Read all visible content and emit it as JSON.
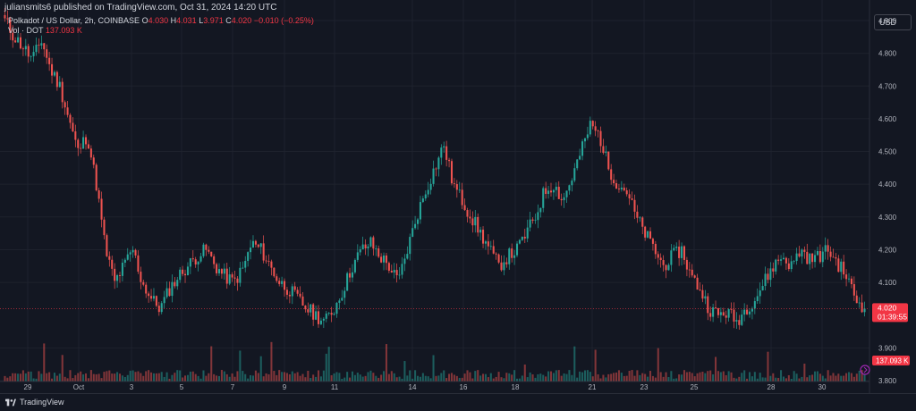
{
  "header": {
    "published_text": "juliansmits6 published on TradingView.com, Oct 31, 2024 14:20 UTC"
  },
  "legend": {
    "symbol": "Polkadot / US Dollar, 2h, COINBASE",
    "open_label": "O",
    "open_value": "4.030",
    "high_label": "H",
    "high_value": "4.031",
    "low_label": "L",
    "low_value": "3.971",
    "close_label": "C",
    "close_value": "4.020",
    "change": "−0.010 (−0.25%)",
    "volume_label": "Vol · DOT",
    "volume_value": "137.093 K"
  },
  "currency_button": "USD",
  "price_axis": {
    "labels": [
      "4.900",
      "4.800",
      "4.700",
      "4.600",
      "4.500",
      "4.400",
      "4.300",
      "4.200",
      "4.100",
      "3.900",
      "3.800"
    ],
    "current_price": "4.020",
    "countdown": "01:39:55",
    "volume_badge": "137.093 K"
  },
  "time_axis": {
    "labels": [
      "29",
      "Oct",
      "3",
      "5",
      "7",
      "9",
      "11",
      "14",
      "16",
      "18",
      "21",
      "23",
      "25",
      "28",
      "30"
    ]
  },
  "footer": {
    "logo_text": "TradingView"
  },
  "colors": {
    "background": "#131722",
    "up": "#26a69a",
    "down": "#ef5350",
    "grid": "#1e222d",
    "price_badge": "#f23645"
  },
  "chart_data": {
    "type": "candlestick",
    "title": "Polkadot / US Dollar, 2h, COINBASE",
    "ylim": [
      3.83,
      4.93
    ],
    "x_ticks": [
      "29",
      "Oct",
      "3",
      "5",
      "7",
      "9",
      "11",
      "14",
      "16",
      "18",
      "21",
      "23",
      "25",
      "28",
      "30"
    ],
    "y_ticks": [
      4.9,
      4.8,
      4.7,
      4.6,
      4.5,
      4.4,
      4.3,
      4.2,
      4.1,
      4.0,
      3.9,
      3.8
    ],
    "close_path": [
      4.9,
      4.85,
      4.82,
      4.78,
      4.84,
      4.75,
      4.7,
      4.6,
      4.5,
      4.55,
      4.4,
      4.2,
      4.1,
      4.15,
      4.2,
      4.1,
      4.05,
      4.02,
      4.08,
      4.12,
      4.15,
      4.18,
      4.2,
      4.15,
      4.12,
      4.1,
      4.14,
      4.22,
      4.2,
      4.15,
      4.1,
      4.08,
      4.05,
      4.02,
      4.0,
      3.98,
      4.02,
      4.08,
      4.15,
      4.2,
      4.22,
      4.18,
      4.15,
      4.1,
      4.2,
      4.3,
      4.38,
      4.45,
      4.52,
      4.4,
      4.35,
      4.3,
      4.25,
      4.2,
      4.15,
      4.18,
      4.2,
      4.25,
      4.3,
      4.38,
      4.4,
      4.35,
      4.42,
      4.5,
      4.58,
      4.55,
      4.45,
      4.4,
      4.38,
      4.3,
      4.25,
      4.2,
      4.15,
      4.18,
      4.2,
      4.12,
      4.08,
      4.02,
      4.0,
      4.01,
      3.98,
      4.02,
      4.05,
      4.1,
      4.15,
      4.18,
      4.15,
      4.2,
      4.17,
      4.18,
      4.2,
      4.16,
      4.12,
      4.05,
      4.02
    ],
    "current_price": 4.02,
    "volume_current": "137.093 K"
  }
}
